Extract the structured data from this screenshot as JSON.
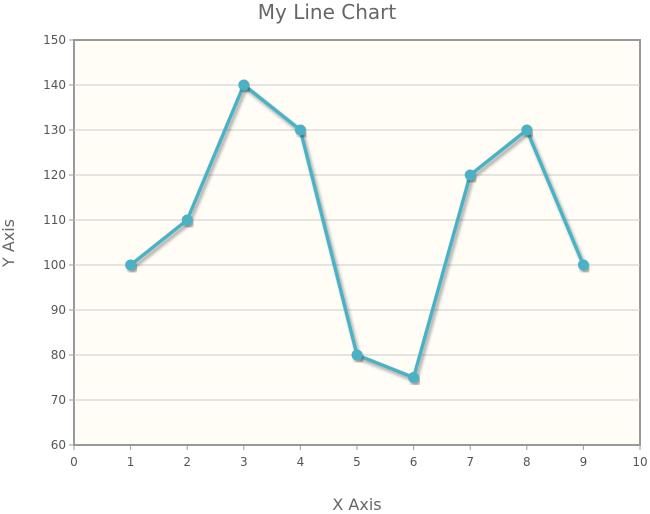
{
  "chart_data": {
    "type": "line",
    "title": "My Line Chart",
    "xlabel": "X Axis",
    "ylabel": "Y Axis",
    "xlim": [
      0,
      10
    ],
    "ylim": [
      60,
      150
    ],
    "x_ticks": [
      0,
      1,
      2,
      3,
      4,
      5,
      6,
      7,
      8,
      9,
      10
    ],
    "y_ticks": [
      60,
      70,
      80,
      90,
      100,
      110,
      120,
      130,
      140,
      150
    ],
    "grid": "horizontal",
    "series": [
      {
        "x": [
          1,
          2,
          3,
          4,
          5,
          6,
          7,
          8,
          9
        ],
        "y": [
          100,
          110,
          140,
          130,
          80,
          75,
          120,
          130,
          100
        ],
        "color": "#4bb2c5"
      }
    ],
    "colors": {
      "plot_background": "#fffdf6",
      "grid": "#cccccc",
      "border": "#999999",
      "text": "#666666"
    }
  }
}
